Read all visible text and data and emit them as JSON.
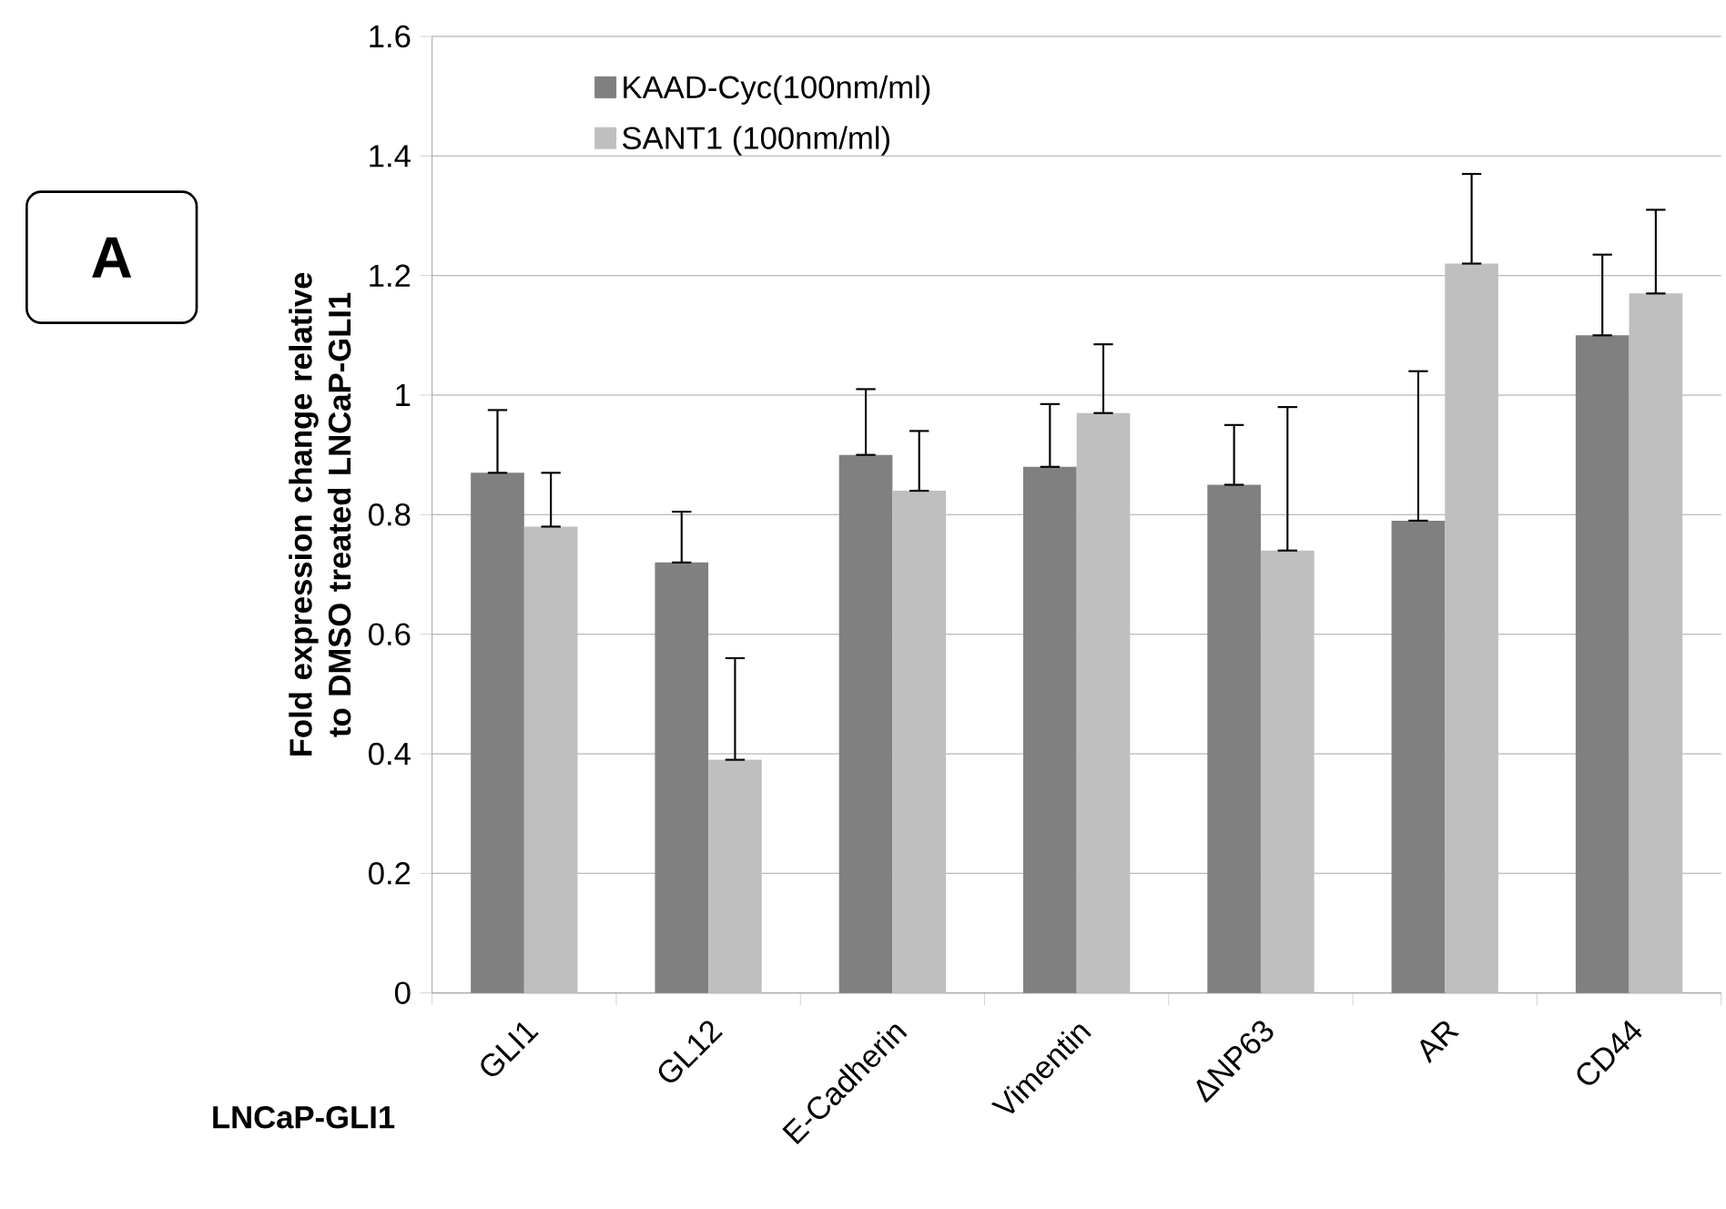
{
  "chart_data": {
    "type": "bar",
    "xlabel": "LNCaP-GLI1",
    "ylabel": "Fold expression change relative to DMSO treated LNCaP-GLI1",
    "categories": [
      "GLI1",
      "GL12",
      "E-Cadherin",
      "Vimentin",
      "ΔNP63",
      "AR",
      "CD44"
    ],
    "series": [
      {
        "name": "KAAD-Cyc(100nm/ml)",
        "color": "#808080",
        "values": [
          0.87,
          0.72,
          0.9,
          0.88,
          0.85,
          0.79,
          1.1
        ],
        "errors": [
          [
            0.87,
            0.975
          ],
          [
            0.72,
            0.805
          ],
          [
            0.9,
            1.01
          ],
          [
            0.88,
            0.985
          ],
          [
            0.85,
            0.95
          ],
          [
            0.79,
            1.04
          ],
          [
            1.1,
            1.235
          ]
        ]
      },
      {
        "name": "SANT1 (100nm/ml)",
        "color": "#bfbfbf",
        "values": [
          0.78,
          0.39,
          0.84,
          0.97,
          0.74,
          1.22,
          1.17
        ],
        "errors": [
          [
            0.78,
            0.87
          ],
          [
            0.39,
            0.56
          ],
          [
            0.84,
            0.94
          ],
          [
            0.97,
            1.085
          ],
          [
            0.74,
            0.98
          ],
          [
            1.22,
            1.37
          ],
          [
            1.17,
            1.31
          ]
        ]
      }
    ],
    "ylim": [
      0,
      1.6
    ],
    "yticks": [
      0,
      0.2,
      0.4,
      0.6,
      0.8,
      1,
      1.2,
      1.4,
      1.6
    ],
    "grid": "y",
    "legend": "top left",
    "annotations": [
      "A"
    ]
  }
}
